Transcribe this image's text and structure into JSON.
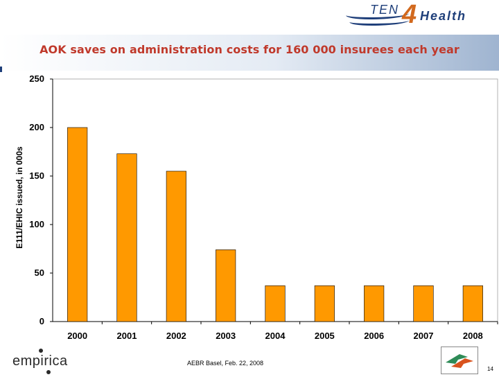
{
  "header": {
    "logo": {
      "ten": "TEN",
      "four": "4",
      "health": "Health"
    },
    "title": "AOK saves on administration costs for 160 000 insurees each year"
  },
  "footer": {
    "brand": "empirica",
    "event": "AEBR Basel, Feb. 22, 2008",
    "page": "14"
  },
  "colors": {
    "bar_fill": "#ff9900",
    "bar_stroke": "#000000",
    "title": "#c0392b",
    "brand_blue": "#1f3f7a"
  },
  "chart_data": {
    "type": "bar",
    "categories": [
      "2000",
      "2001",
      "2002",
      "2003",
      "2004",
      "2005",
      "2006",
      "2007",
      "2008"
    ],
    "values": [
      200,
      173,
      155,
      74,
      37,
      37,
      37,
      37,
      37
    ],
    "title": "",
    "xlabel": "",
    "ylabel": "E111/EHIC issued, in 000s",
    "ylim": [
      0,
      250
    ],
    "yticks": [
      "0",
      "50",
      "100",
      "150",
      "200",
      "250"
    ],
    "grid": false,
    "legend": "none"
  }
}
